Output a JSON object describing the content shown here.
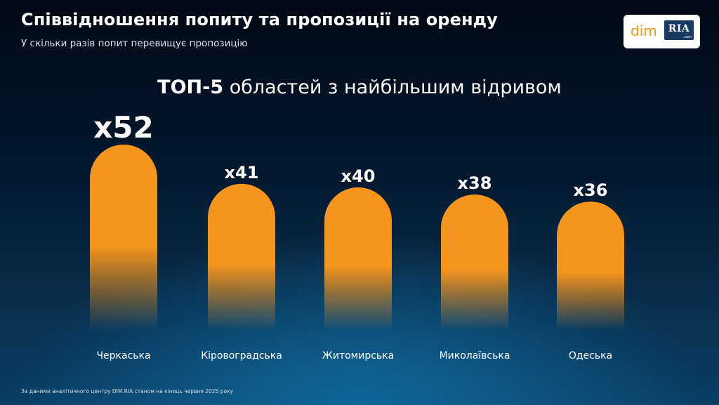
{
  "header": {
    "title": "Співвідношення попиту та пропозиції на оренду",
    "subtitle": "У скільки разів попит перевищує пропозицію"
  },
  "logo": {
    "dim": "dim",
    "ria": "RIA",
    "ria_suffix": ".com"
  },
  "chart_data": {
    "type": "bar",
    "title_bold": "ТОП-5",
    "title_rest": "областей з найбільшим відривом",
    "categories": [
      "Черкаська",
      "Кіровоградська",
      "Житомирська",
      "Миколаївська",
      "Одеська"
    ],
    "values": [
      52,
      41,
      40,
      38,
      36
    ],
    "value_labels": [
      "x52",
      "x41",
      "x40",
      "x38",
      "x36"
    ],
    "bar_color": "#f5951d",
    "highlight_index": 0
  },
  "footnote": "За даними аналітичного центру DIM.RIA станом на кінець червня 2025 року"
}
